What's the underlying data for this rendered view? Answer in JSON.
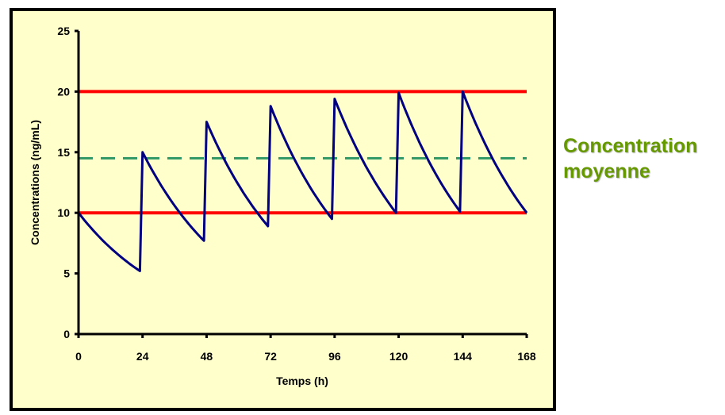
{
  "chart_data": {
    "type": "line",
    "xlabel": "Temps (h)",
    "ylabel": "Concentrations (ng/mL)",
    "xlim": [
      0,
      168
    ],
    "ylim": [
      0,
      25
    ],
    "xticks": [
      0,
      24,
      48,
      72,
      96,
      120,
      144,
      168
    ],
    "yticks": [
      0,
      5,
      10,
      15,
      20,
      25
    ],
    "grid": false,
    "background": "#FFFFCC",
    "series": [
      {
        "color": "#000080",
        "points": [
          [
            0,
            10
          ],
          [
            23,
            5.2
          ],
          [
            24,
            15
          ],
          [
            47,
            7.7
          ],
          [
            48,
            17.5
          ],
          [
            71,
            8.9
          ],
          [
            72,
            18.8
          ],
          [
            95,
            9.5
          ],
          [
            96,
            19.4
          ],
          [
            119,
            10.0
          ],
          [
            120,
            19.9
          ],
          [
            143,
            10.1
          ],
          [
            144,
            20
          ],
          [
            168,
            10
          ]
        ]
      }
    ],
    "reference_lines": [
      {
        "y": 20,
        "color": "#FF0000",
        "style": "solid"
      },
      {
        "y": 10,
        "color": "#FF0000",
        "style": "solid"
      },
      {
        "y": 14.5,
        "color": "#339966",
        "style": "dashed"
      }
    ]
  },
  "annotation": {
    "line1": "Concentration",
    "line2": "moyenne",
    "color": "#669900"
  }
}
